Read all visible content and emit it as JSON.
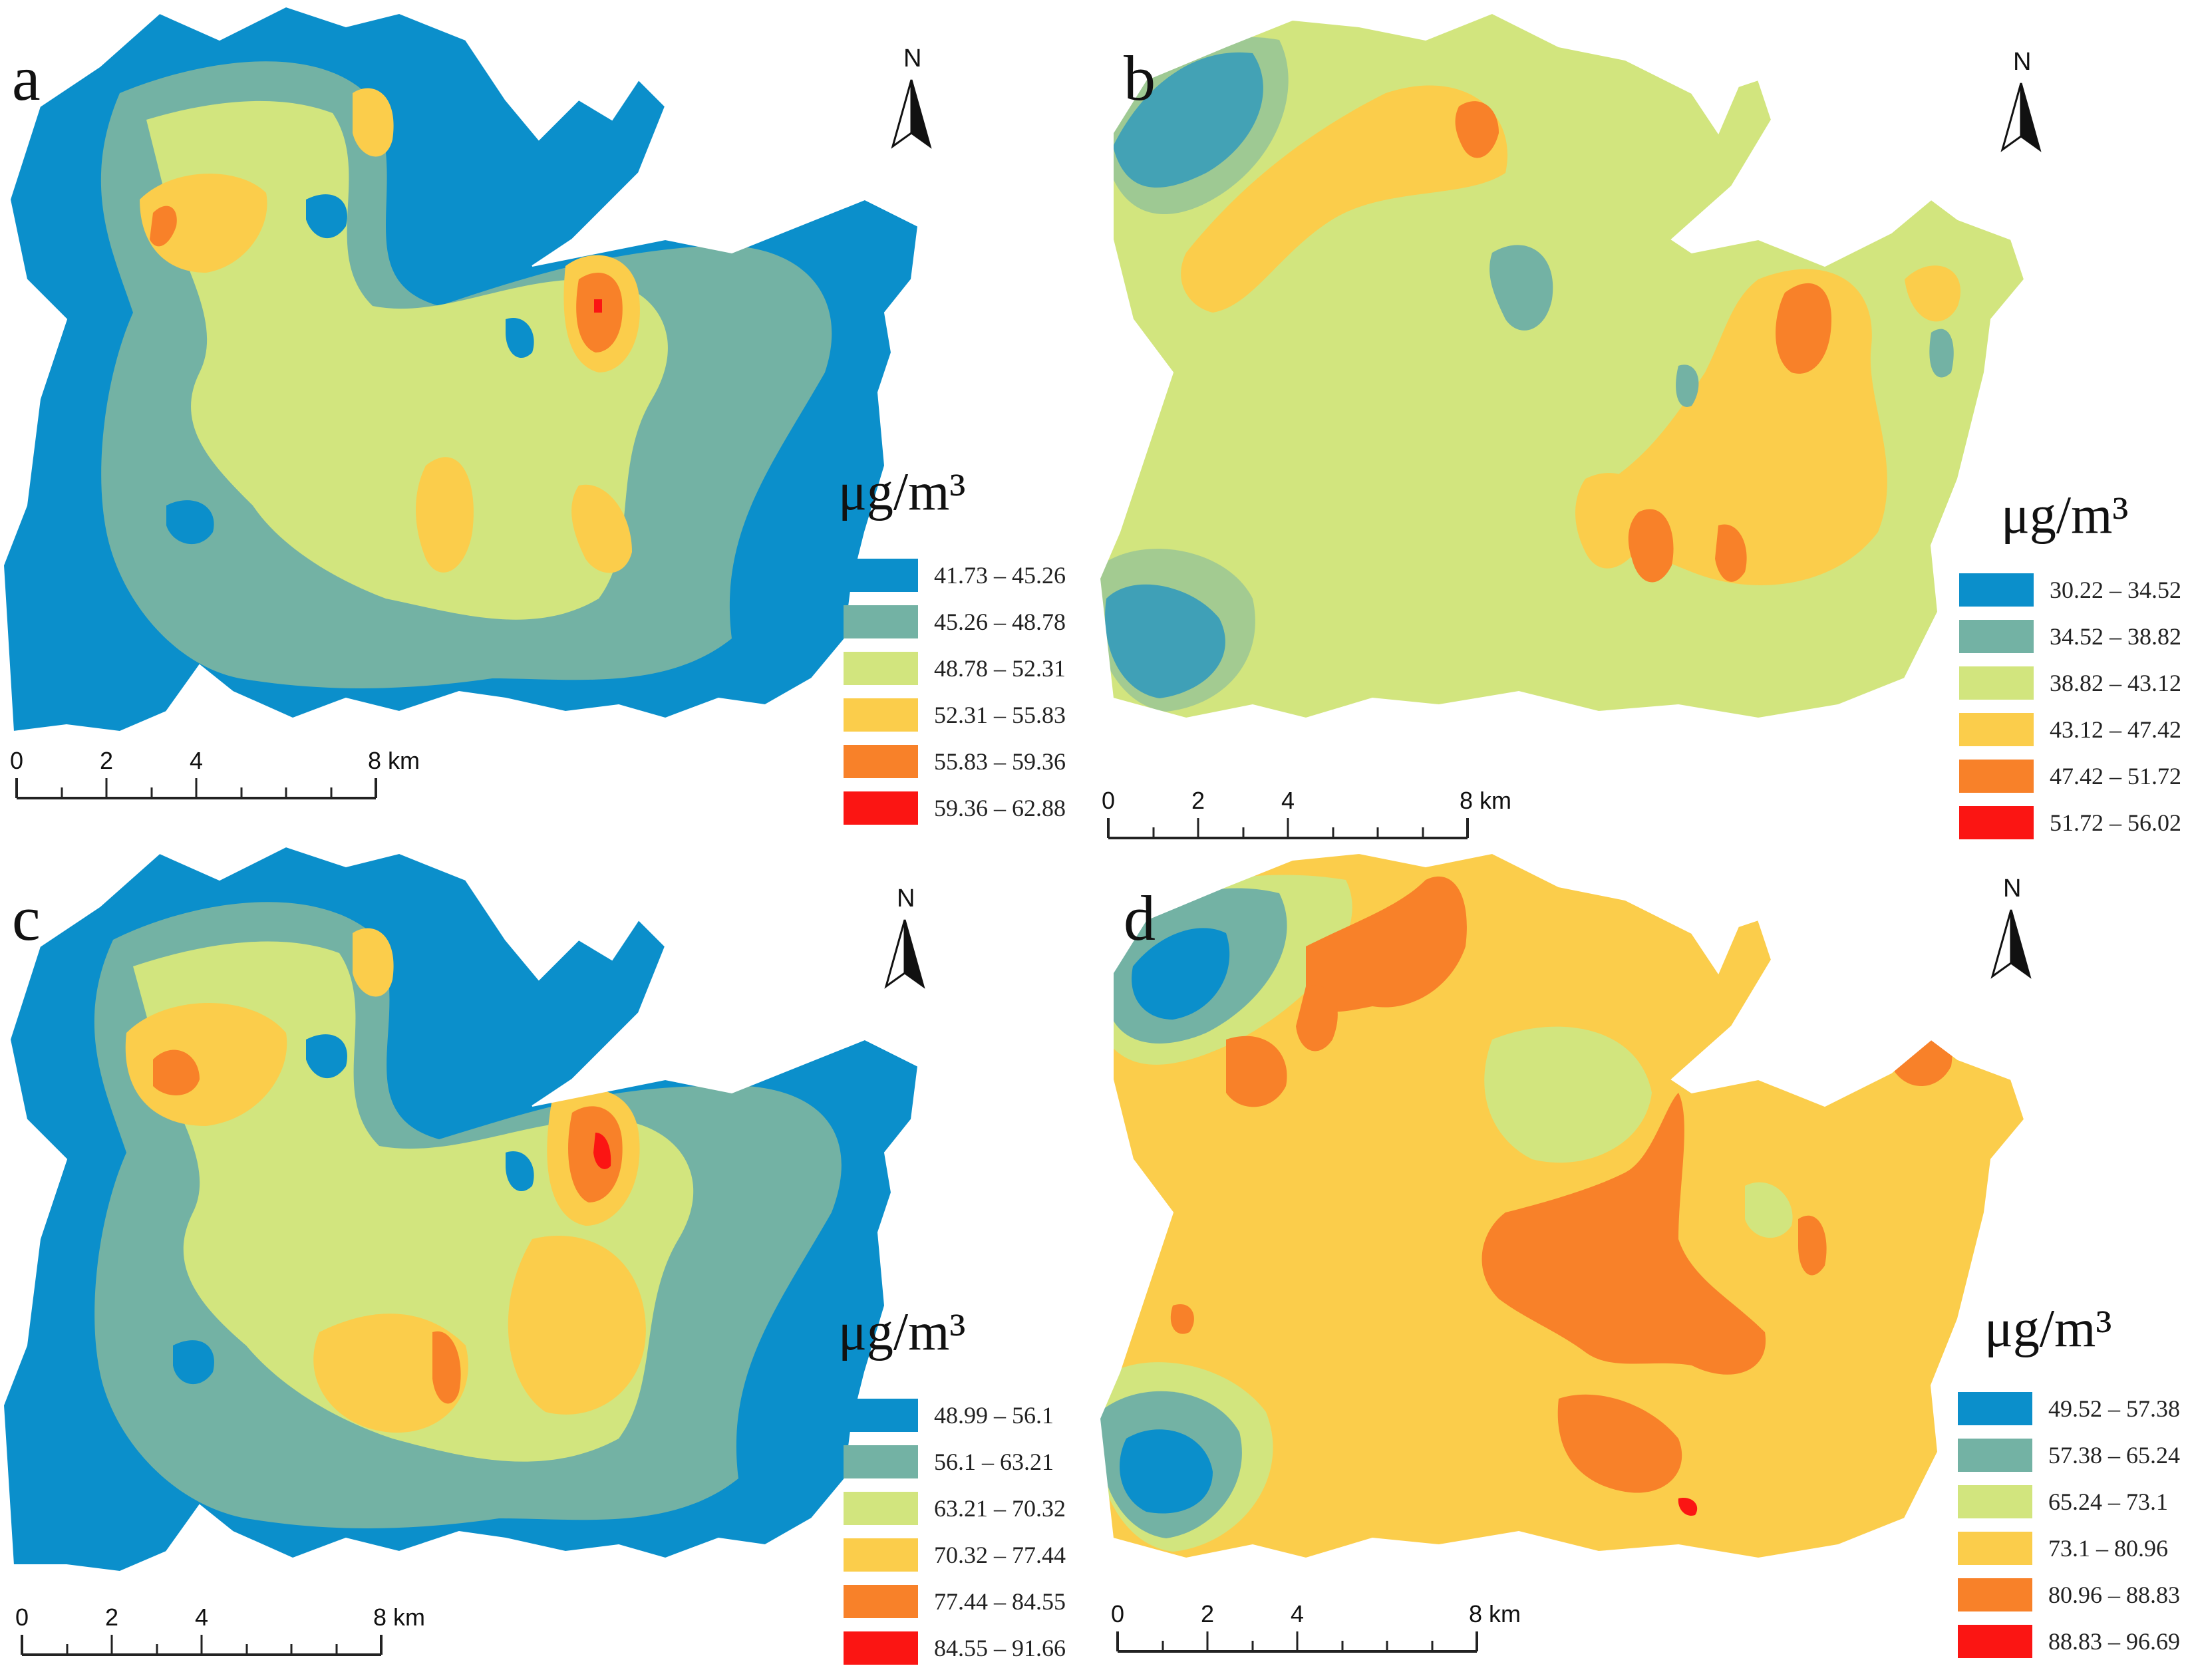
{
  "colors": {
    "class1": "#0b8fcb",
    "class2": "#73b2a4",
    "class3": "#d2e57e",
    "class4": "#fbcd4b",
    "class5": "#f88129",
    "class6": "#fb1513"
  },
  "north_arrow": {
    "label": "N",
    "icon": "north-arrow-icon"
  },
  "scale_bar": {
    "ticks": [
      "0",
      "2",
      "4",
      "8 km"
    ]
  },
  "panels": [
    {
      "letter": "a",
      "unit": "μg/m³",
      "legend": [
        {
          "label": "41.73 – 45.26",
          "color": "#0b8fcb"
        },
        {
          "label": "45.26 – 48.78",
          "color": "#73b2a4"
        },
        {
          "label": "48.78 – 52.31",
          "color": "#d2e57e"
        },
        {
          "label": "52.31 – 55.83",
          "color": "#fbcd4b"
        },
        {
          "label": "55.83 – 59.36",
          "color": "#f88129"
        },
        {
          "label": "59.36 – 62.88",
          "color": "#fb1513"
        }
      ]
    },
    {
      "letter": "b",
      "unit": "μg/m³",
      "legend": [
        {
          "label": "30.22 – 34.52",
          "color": "#0b8fcb"
        },
        {
          "label": "34.52 – 38.82",
          "color": "#73b2a4"
        },
        {
          "label": "38.82 – 43.12",
          "color": "#d2e57e"
        },
        {
          "label": "43.12 – 47.42",
          "color": "#fbcd4b"
        },
        {
          "label": "47.42 – 51.72",
          "color": "#f88129"
        },
        {
          "label": "51.72 – 56.02",
          "color": "#fb1513"
        }
      ]
    },
    {
      "letter": "c",
      "unit": "μg/m³",
      "legend": [
        {
          "label": "48.99 – 56.1",
          "color": "#0b8fcb"
        },
        {
          "label": "56.1 – 63.21",
          "color": "#73b2a4"
        },
        {
          "label": "63.21 – 70.32",
          "color": "#d2e57e"
        },
        {
          "label": "70.32 – 77.44",
          "color": "#fbcd4b"
        },
        {
          "label": "77.44 – 84.55",
          "color": "#f88129"
        },
        {
          "label": "84.55 – 91.66",
          "color": "#fb1513"
        }
      ]
    },
    {
      "letter": "d",
      "unit": "μg/m³",
      "legend": [
        {
          "label": "49.52 – 57.38",
          "color": "#0b8fcb"
        },
        {
          "label": "57.38 – 65.24",
          "color": "#73b2a4"
        },
        {
          "label": "65.24 – 73.1",
          "color": "#d2e57e"
        },
        {
          "label": "73.1 – 80.96",
          "color": "#fbcd4b"
        },
        {
          "label": "80.96 – 88.83",
          "color": "#f88129"
        },
        {
          "label": "88.83 – 96.69",
          "color": "#fb1513"
        }
      ]
    }
  ]
}
